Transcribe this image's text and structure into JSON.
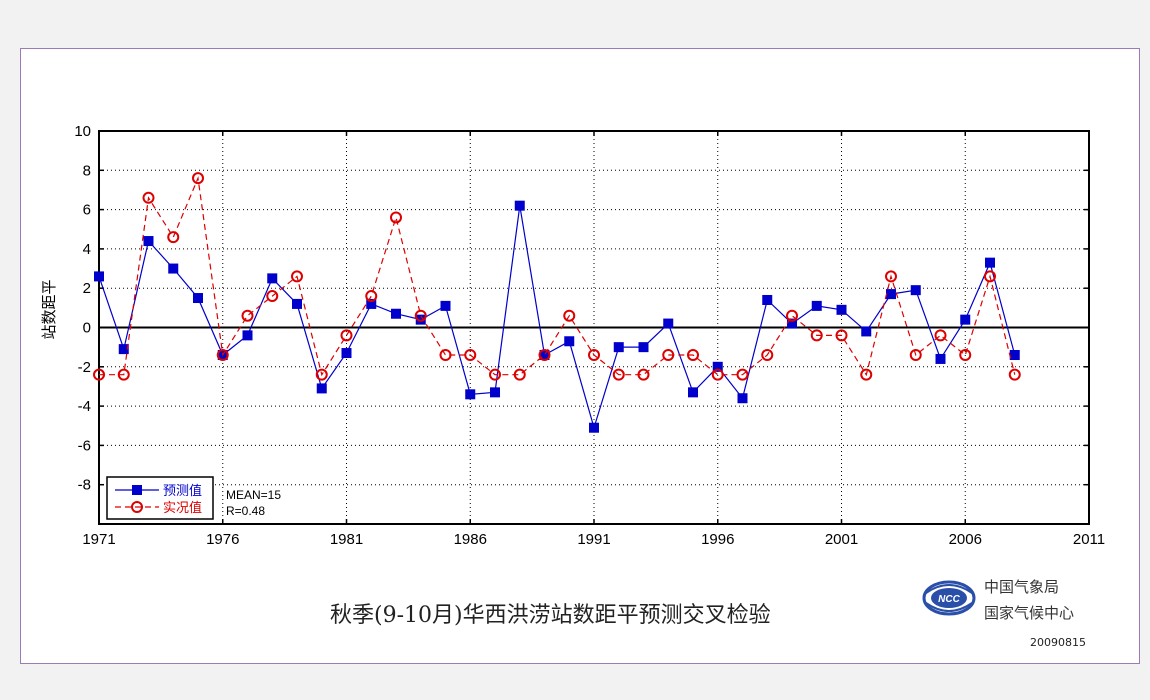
{
  "chart_data": {
    "type": "line",
    "title": "秋季(9-10月)华西洪涝站数距平预测交叉检验",
    "xlabel": "",
    "ylabel": "站数距平",
    "xlim": [
      1971,
      2011
    ],
    "ylim": [
      -10,
      10
    ],
    "xticks": [
      1971,
      1976,
      1981,
      1986,
      1991,
      1996,
      2001,
      2006,
      2011
    ],
    "yticks": [
      -8,
      -6,
      -4,
      -2,
      0,
      2,
      4,
      6,
      8,
      10
    ],
    "grid": true,
    "legend_position": "bottom-left",
    "years": [
      1971,
      1972,
      1973,
      1974,
      1975,
      1976,
      1977,
      1978,
      1979,
      1980,
      1981,
      1982,
      1983,
      1984,
      1985,
      1986,
      1987,
      1988,
      1989,
      1990,
      1991,
      1992,
      1993,
      1994,
      1995,
      1996,
      1997,
      1998,
      1999,
      2000,
      2001,
      2002,
      2003,
      2004,
      2005,
      2006,
      2007,
      2008
    ],
    "series": [
      {
        "name": "预测值",
        "color": "#0000cc",
        "line_style": "solid",
        "marker": "filled-square",
        "values": [
          2.6,
          -1.1,
          4.4,
          3.0,
          1.5,
          -1.4,
          -0.4,
          2.5,
          1.2,
          -3.1,
          -1.3,
          1.2,
          0.7,
          0.4,
          1.1,
          -3.4,
          -3.3,
          6.2,
          -1.4,
          -0.7,
          -5.1,
          -1.0,
          -1.0,
          0.2,
          -3.3,
          -2.0,
          -3.6,
          1.4,
          0.2,
          1.1,
          0.9,
          -0.2,
          1.7,
          1.9,
          -1.6,
          0.4,
          3.3,
          -1.4
        ]
      },
      {
        "name": "实况值",
        "color": "#dd0000",
        "line_style": "dashed",
        "marker": "open-circle",
        "values": [
          -2.4,
          -2.4,
          6.6,
          4.6,
          7.6,
          -1.4,
          0.6,
          1.6,
          2.6,
          -2.4,
          -0.4,
          1.6,
          5.6,
          0.6,
          -1.4,
          -1.4,
          -2.4,
          -2.4,
          -1.4,
          0.6,
          -1.4,
          -2.4,
          -2.4,
          -1.4,
          -1.4,
          -2.4,
          -2.4,
          -1.4,
          0.6,
          -0.4,
          -0.4,
          -2.4,
          2.6,
          -1.4,
          -0.4,
          -1.4,
          2.6,
          -2.4
        ]
      }
    ],
    "annotations": [
      "MEAN=15",
      "R=0.48"
    ]
  },
  "org": {
    "logo_text": "NCC",
    "name_line1": "中国气象局",
    "name_line2": "国家气候中心",
    "date": "20090815"
  }
}
